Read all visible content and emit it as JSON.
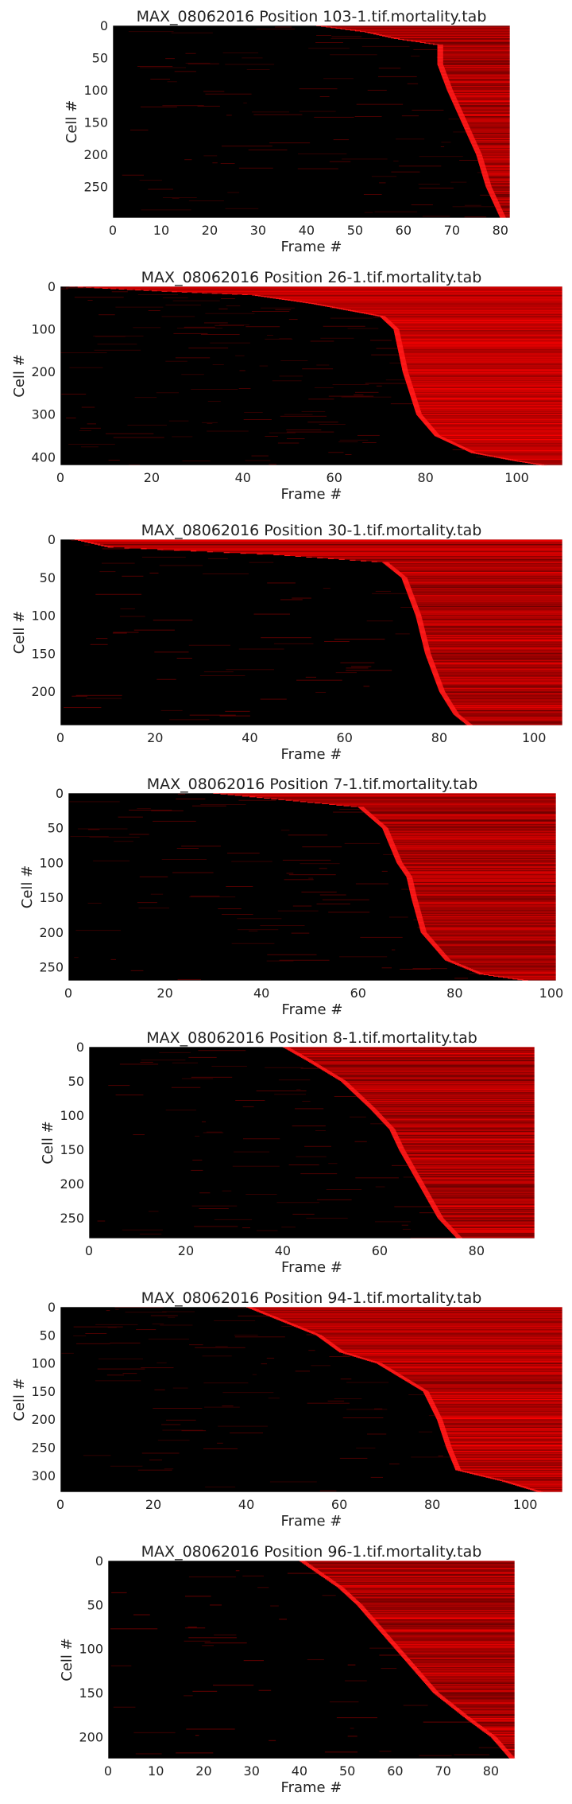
{
  "chart_data": [
    {
      "type": "heatmap",
      "title": "MAX_08062016 Position 103-1.tif.mortality.tab",
      "xlabel": "Frame #",
      "ylabel": "Cell #",
      "x_range": [
        0,
        82
      ],
      "y_range": [
        0,
        299
      ],
      "x_ticks": [
        0,
        10,
        20,
        30,
        40,
        50,
        60,
        70,
        80
      ],
      "y_ticks": [
        0,
        50,
        100,
        150,
        200,
        250
      ],
      "grid": false,
      "colormap": [
        "#000000",
        "#ff0000"
      ],
      "death_onset": [
        {
          "cell": 0,
          "frame": 42
        },
        {
          "cell": 10,
          "frame": 52
        },
        {
          "cell": 20,
          "frame": 58
        },
        {
          "cell": 30,
          "frame": 67
        },
        {
          "cell": 60,
          "frame": 67
        },
        {
          "cell": 100,
          "frame": 69
        },
        {
          "cell": 150,
          "frame": 72
        },
        {
          "cell": 200,
          "frame": 75
        },
        {
          "cell": 250,
          "frame": 77
        },
        {
          "cell": 299,
          "frame": 80
        }
      ]
    },
    {
      "type": "heatmap",
      "title": "MAX_08062016 Position 26-1.tif.mortality.tab",
      "xlabel": "Frame #",
      "ylabel": "Cell #",
      "x_range": [
        0,
        110
      ],
      "y_range": [
        0,
        420
      ],
      "x_ticks": [
        0,
        20,
        40,
        60,
        80,
        100
      ],
      "y_ticks": [
        0,
        100,
        200,
        300,
        400
      ],
      "grid": false,
      "colormap": [
        "#000000",
        "#ff0000"
      ],
      "death_onset": [
        {
          "cell": 0,
          "frame": 2
        },
        {
          "cell": 10,
          "frame": 20
        },
        {
          "cell": 20,
          "frame": 42
        },
        {
          "cell": 40,
          "frame": 55
        },
        {
          "cell": 70,
          "frame": 70
        },
        {
          "cell": 100,
          "frame": 73
        },
        {
          "cell": 200,
          "frame": 75
        },
        {
          "cell": 300,
          "frame": 78
        },
        {
          "cell": 350,
          "frame": 82
        },
        {
          "cell": 390,
          "frame": 90
        },
        {
          "cell": 410,
          "frame": 100
        },
        {
          "cell": 420,
          "frame": 106
        }
      ]
    },
    {
      "type": "heatmap",
      "title": "MAX_08062016 Position 30-1.tif.mortality.tab",
      "xlabel": "Frame #",
      "ylabel": "Cell #",
      "x_range": [
        0,
        106
      ],
      "y_range": [
        0,
        245
      ],
      "x_ticks": [
        0,
        20,
        40,
        60,
        80,
        100
      ],
      "y_ticks": [
        0,
        50,
        100,
        150,
        200
      ],
      "grid": false,
      "colormap": [
        "#000000",
        "#ff0000"
      ],
      "death_onset": [
        {
          "cell": 0,
          "frame": 3
        },
        {
          "cell": 10,
          "frame": 10
        },
        {
          "cell": 20,
          "frame": 45
        },
        {
          "cell": 30,
          "frame": 68
        },
        {
          "cell": 50,
          "frame": 72
        },
        {
          "cell": 100,
          "frame": 75
        },
        {
          "cell": 150,
          "frame": 77
        },
        {
          "cell": 200,
          "frame": 80
        },
        {
          "cell": 230,
          "frame": 83
        },
        {
          "cell": 245,
          "frame": 86
        }
      ]
    },
    {
      "type": "heatmap",
      "title": "MAX_08062016 Position 7-1.tif.mortality.tab",
      "xlabel": "Frame #",
      "ylabel": "Cell #",
      "x_range": [
        0,
        101
      ],
      "y_range": [
        0,
        270
      ],
      "x_ticks": [
        0,
        20,
        40,
        60,
        80,
        100
      ],
      "y_ticks": [
        0,
        50,
        100,
        150,
        200,
        250
      ],
      "grid": false,
      "colormap": [
        "#000000",
        "#ff0000"
      ],
      "death_onset": [
        {
          "cell": 0,
          "frame": 30
        },
        {
          "cell": 20,
          "frame": 60
        },
        {
          "cell": 50,
          "frame": 65
        },
        {
          "cell": 100,
          "frame": 68
        },
        {
          "cell": 120,
          "frame": 70
        },
        {
          "cell": 150,
          "frame": 71
        },
        {
          "cell": 200,
          "frame": 73
        },
        {
          "cell": 240,
          "frame": 78
        },
        {
          "cell": 260,
          "frame": 85
        },
        {
          "cell": 270,
          "frame": 95
        }
      ]
    },
    {
      "type": "heatmap",
      "title": "MAX_08062016 Position 8-1.tif.mortality.tab",
      "xlabel": "Frame #",
      "ylabel": "Cell #",
      "x_range": [
        0,
        92
      ],
      "y_range": [
        0,
        280
      ],
      "x_ticks": [
        0,
        20,
        40,
        60,
        80
      ],
      "y_ticks": [
        0,
        50,
        100,
        150,
        200,
        250
      ],
      "grid": false,
      "colormap": [
        "#000000",
        "#ff0000"
      ],
      "death_onset": [
        {
          "cell": 0,
          "frame": 40
        },
        {
          "cell": 20,
          "frame": 45
        },
        {
          "cell": 50,
          "frame": 52
        },
        {
          "cell": 90,
          "frame": 58
        },
        {
          "cell": 120,
          "frame": 62
        },
        {
          "cell": 150,
          "frame": 64
        },
        {
          "cell": 200,
          "frame": 68
        },
        {
          "cell": 250,
          "frame": 72
        },
        {
          "cell": 280,
          "frame": 76
        }
      ]
    },
    {
      "type": "heatmap",
      "title": "MAX_08062016 Position 94-1.tif.mortality.tab",
      "xlabel": "Frame #",
      "ylabel": "Cell #",
      "x_range": [
        0,
        108
      ],
      "y_range": [
        0,
        330
      ],
      "x_ticks": [
        0,
        20,
        40,
        60,
        80,
        100
      ],
      "y_ticks": [
        0,
        50,
        100,
        150,
        200,
        250,
        300
      ],
      "grid": false,
      "colormap": [
        "#000000",
        "#ff0000"
      ],
      "death_onset": [
        {
          "cell": 0,
          "frame": 40
        },
        {
          "cell": 50,
          "frame": 55
        },
        {
          "cell": 80,
          "frame": 60
        },
        {
          "cell": 100,
          "frame": 68
        },
        {
          "cell": 150,
          "frame": 78
        },
        {
          "cell": 200,
          "frame": 81
        },
        {
          "cell": 250,
          "frame": 83
        },
        {
          "cell": 290,
          "frame": 85
        },
        {
          "cell": 310,
          "frame": 95
        },
        {
          "cell": 330,
          "frame": 103
        }
      ]
    },
    {
      "type": "heatmap",
      "title": "MAX_08062016 Position 96-1.tif.mortality.tab",
      "xlabel": "Frame #",
      "ylabel": "Cell #",
      "x_range": [
        0,
        85
      ],
      "y_range": [
        0,
        225
      ],
      "x_ticks": [
        0,
        10,
        20,
        30,
        40,
        50,
        60,
        70,
        80
      ],
      "y_ticks": [
        0,
        50,
        100,
        150,
        200
      ],
      "grid": false,
      "colormap": [
        "#000000",
        "#ff0000"
      ],
      "death_onset": [
        {
          "cell": 0,
          "frame": 40
        },
        {
          "cell": 30,
          "frame": 48
        },
        {
          "cell": 50,
          "frame": 52
        },
        {
          "cell": 100,
          "frame": 60
        },
        {
          "cell": 150,
          "frame": 68
        },
        {
          "cell": 180,
          "frame": 75
        },
        {
          "cell": 200,
          "frame": 80
        },
        {
          "cell": 225,
          "frame": 84
        }
      ]
    }
  ]
}
